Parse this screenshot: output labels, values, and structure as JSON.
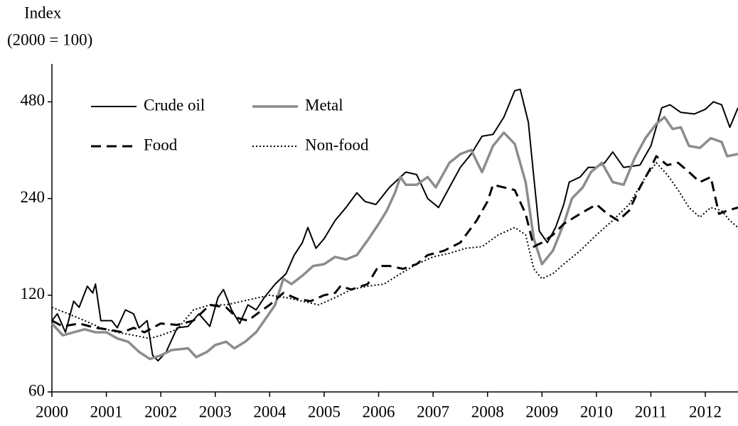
{
  "chart_data": {
    "type": "line",
    "title": "Index",
    "subtitle": "(2000 = 100)",
    "log_scale": true,
    "grid": false,
    "legend": "top-left",
    "xlim": [
      2000,
      2012.6
    ],
    "xticks": [
      2000,
      2001,
      2002,
      2003,
      2004,
      2005,
      2006,
      2007,
      2008,
      2009,
      2010,
      2011,
      2012
    ],
    "ylim": [
      60,
      630
    ],
    "yticks": [
      60,
      120,
      240,
      480
    ],
    "series": [
      {
        "name": "Crude oil",
        "color": "#000000",
        "dash": "solid",
        "width": 2,
        "x": [
          2000.0,
          2000.1,
          2000.25,
          2000.4,
          2000.5,
          2000.65,
          2000.75,
          2000.8,
          2000.9,
          2001.1,
          2001.2,
          2001.35,
          2001.5,
          2001.6,
          2001.75,
          2001.85,
          2001.95,
          2002.1,
          2002.3,
          2002.5,
          2002.7,
          2002.9,
          2003.05,
          2003.15,
          2003.3,
          2003.45,
          2003.6,
          2003.75,
          2003.9,
          2004.1,
          2004.3,
          2004.45,
          2004.6,
          2004.7,
          2004.85,
          2005.0,
          2005.2,
          2005.4,
          2005.6,
          2005.75,
          2005.95,
          2006.2,
          2006.5,
          2006.7,
          2006.9,
          2007.1,
          2007.3,
          2007.5,
          2007.7,
          2007.9,
          2008.1,
          2008.3,
          2008.5,
          2008.6,
          2008.75,
          2008.85,
          2008.95,
          2009.1,
          2009.25,
          2009.4,
          2009.5,
          2009.7,
          2009.85,
          2010.0,
          2010.15,
          2010.3,
          2010.5,
          2010.8,
          2011.0,
          2011.2,
          2011.35,
          2011.55,
          2011.8,
          2012.0,
          2012.15,
          2012.3,
          2012.45,
          2012.6
        ],
        "values": [
          100,
          105,
          92,
          115,
          110,
          128,
          122,
          130,
          100,
          100,
          95,
          108,
          105,
          95,
          100,
          78,
          75,
          80,
          95,
          96,
          105,
          96,
          118,
          125,
          108,
          98,
          112,
          108,
          118,
          130,
          140,
          160,
          175,
          195,
          168,
          180,
          205,
          225,
          250,
          235,
          230,
          260,
          290,
          285,
          240,
          225,
          260,
          300,
          330,
          375,
          380,
          430,
          520,
          525,
          415,
          280,
          190,
          175,
          195,
          230,
          270,
          280,
          300,
          300,
          310,
          335,
          300,
          305,
          350,
          460,
          470,
          445,
          440,
          455,
          480,
          470,
          400,
          460
        ]
      },
      {
        "name": "Metal",
        "color": "#8c8c8c",
        "dash": "solid",
        "width": 3.5,
        "x": [
          2000.0,
          2000.2,
          2000.4,
          2000.6,
          2000.8,
          2001.0,
          2001.2,
          2001.4,
          2001.6,
          2001.8,
          2002.0,
          2002.2,
          2002.5,
          2002.65,
          2002.85,
          2003.0,
          2003.2,
          2003.35,
          2003.55,
          2003.75,
          2003.9,
          2004.1,
          2004.25,
          2004.4,
          2004.6,
          2004.8,
          2005.0,
          2005.2,
          2005.4,
          2005.6,
          2005.8,
          2006.0,
          2006.15,
          2006.3,
          2006.4,
          2006.5,
          2006.7,
          2006.9,
          2007.05,
          2007.3,
          2007.5,
          2007.7,
          2007.9,
          2008.1,
          2008.3,
          2008.5,
          2008.7,
          2008.85,
          2009.0,
          2009.2,
          2009.4,
          2009.55,
          2009.75,
          2009.9,
          2010.1,
          2010.3,
          2010.5,
          2010.7,
          2010.9,
          2011.1,
          2011.25,
          2011.4,
          2011.55,
          2011.7,
          2011.9,
          2012.1,
          2012.3,
          2012.4,
          2012.6
        ],
        "values": [
          98,
          90,
          92,
          94,
          92,
          92,
          88,
          86,
          80,
          76,
          78,
          81,
          82,
          77,
          80,
          84,
          86,
          82,
          86,
          92,
          100,
          112,
          135,
          130,
          138,
          148,
          150,
          158,
          155,
          160,
          178,
          200,
          220,
          250,
          280,
          265,
          265,
          280,
          260,
          310,
          330,
          340,
          290,
          350,
          385,
          355,
          270,
          180,
          150,
          165,
          200,
          240,
          260,
          290,
          310,
          270,
          265,
          320,
          370,
          410,
          430,
          395,
          400,
          350,
          345,
          370,
          360,
          325,
          330
        ]
      },
      {
        "name": "Food",
        "color": "#000000",
        "dash": "dashed",
        "width": 3,
        "x": [
          2000.0,
          2000.2,
          2000.5,
          2000.8,
          2001.0,
          2001.3,
          2001.5,
          2001.7,
          2001.85,
          2002.0,
          2002.3,
          2002.6,
          2002.9,
          2003.2,
          2003.4,
          2003.6,
          2003.8,
          2004.0,
          2004.25,
          2004.5,
          2004.75,
          2005.0,
          2005.2,
          2005.3,
          2005.5,
          2005.8,
          2006.0,
          2006.2,
          2006.45,
          2006.7,
          2006.9,
          2007.2,
          2007.5,
          2007.8,
          2008.0,
          2008.1,
          2008.3,
          2008.5,
          2008.7,
          2008.85,
          2009.0,
          2009.2,
          2009.4,
          2009.6,
          2009.8,
          2010.0,
          2010.2,
          2010.4,
          2010.6,
          2010.8,
          2011.0,
          2011.1,
          2011.3,
          2011.5,
          2011.7,
          2011.9,
          2012.1,
          2012.25,
          2012.4,
          2012.6
        ],
        "values": [
          100,
          96,
          98,
          95,
          94,
          92,
          95,
          92,
          95,
          98,
          97,
          100,
          112,
          110,
          102,
          100,
          106,
          112,
          122,
          117,
          115,
          120,
          122,
          128,
          125,
          130,
          148,
          148,
          145,
          150,
          160,
          165,
          175,
          205,
          235,
          265,
          260,
          255,
          215,
          170,
          175,
          185,
          200,
          210,
          220,
          230,
          215,
          205,
          220,
          260,
          300,
          325,
          305,
          310,
          290,
          270,
          280,
          215,
          220,
          225
        ]
      },
      {
        "name": "Non-food",
        "color": "#000000",
        "dash": "dotted",
        "width": 2,
        "x": [
          2000.0,
          2000.3,
          2000.6,
          2000.9,
          2001.2,
          2001.5,
          2001.8,
          2002.0,
          2002.3,
          2002.6,
          2002.9,
          2003.2,
          2003.5,
          2003.8,
          2004.0,
          2004.3,
          2004.6,
          2004.9,
          2005.2,
          2005.5,
          2005.8,
          2006.1,
          2006.4,
          2006.7,
          2007.0,
          2007.3,
          2007.6,
          2007.9,
          2008.2,
          2008.5,
          2008.7,
          2008.85,
          2009.0,
          2009.2,
          2009.4,
          2009.7,
          2010.0,
          2010.3,
          2010.6,
          2010.9,
          2011.1,
          2011.3,
          2011.5,
          2011.7,
          2011.9,
          2012.1,
          2012.3,
          2012.45,
          2012.6
        ],
        "values": [
          110,
          105,
          100,
          95,
          92,
          90,
          88,
          90,
          94,
          108,
          112,
          112,
          115,
          118,
          120,
          118,
          115,
          112,
          118,
          125,
          128,
          130,
          140,
          150,
          158,
          162,
          168,
          170,
          185,
          195,
          185,
          145,
          135,
          140,
          150,
          165,
          185,
          205,
          230,
          280,
          310,
          285,
          255,
          225,
          210,
          225,
          220,
          205,
          195
        ]
      }
    ]
  }
}
